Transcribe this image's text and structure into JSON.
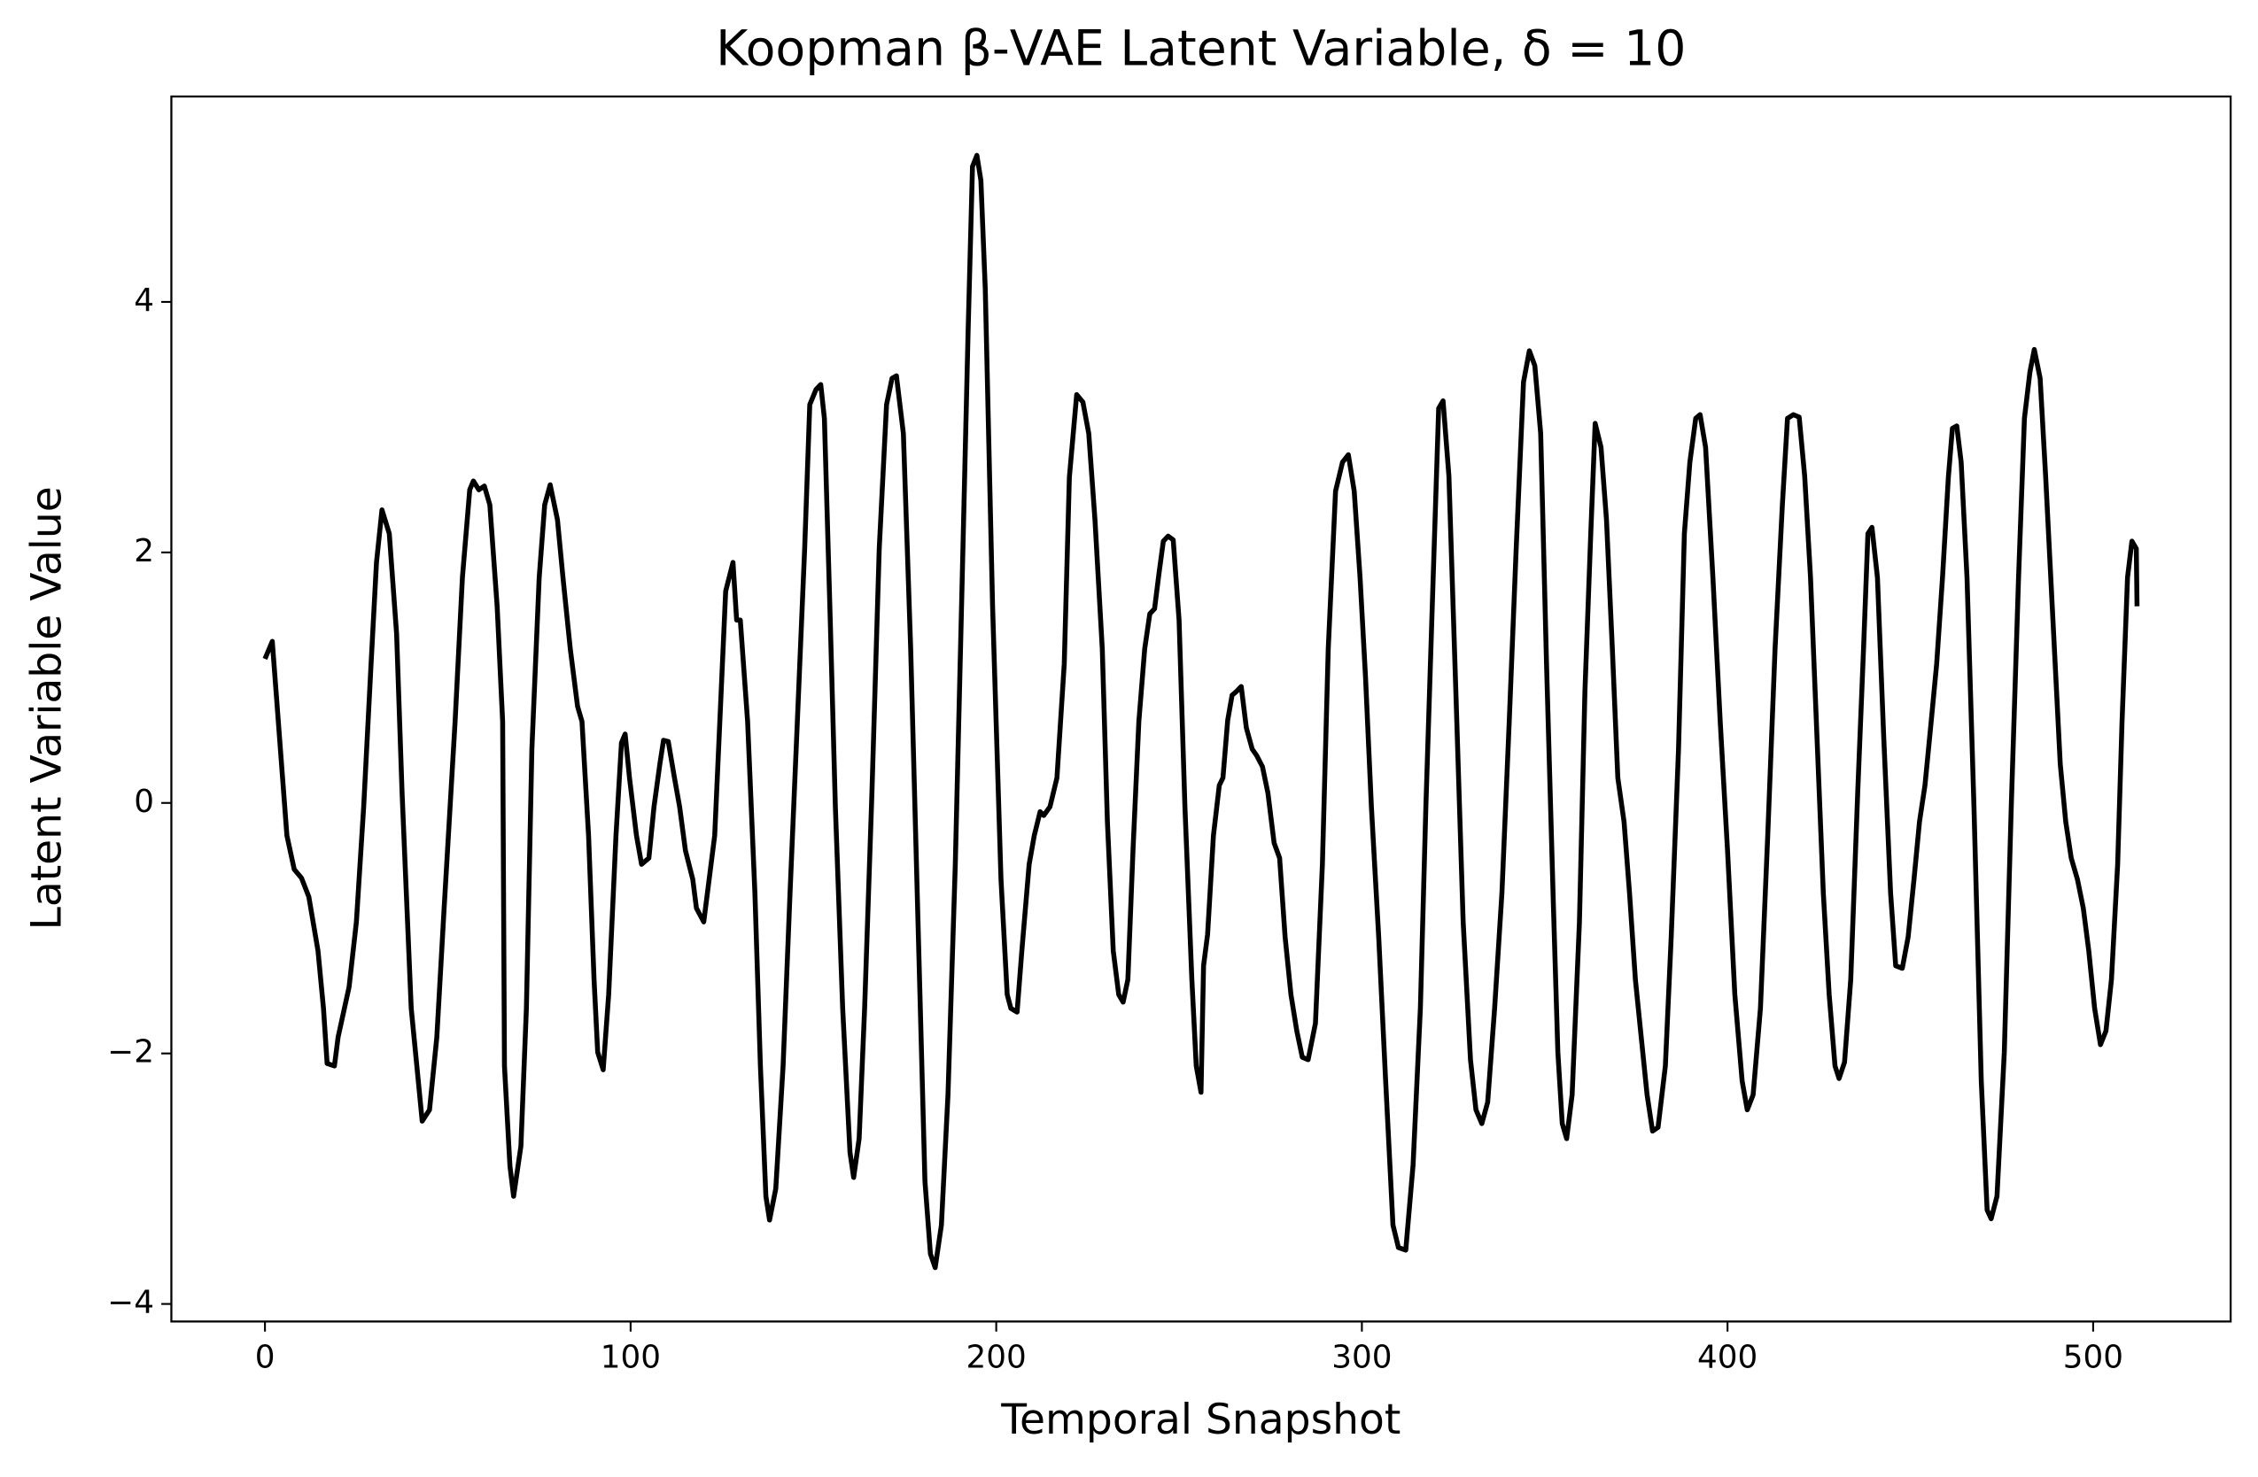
{
  "chart_data": {
    "type": "line",
    "title": "Koopman β-VAE Latent Variable, δ = 10",
    "x_label": "Temporal Snapshot",
    "y_label": "Latent Variable Value",
    "color": "#000000",
    "xlim": [
      -25.6,
      537.6
    ],
    "ylim": [
      -4.14,
      5.64
    ],
    "xticks": [
      0,
      100,
      200,
      300,
      400,
      500
    ],
    "yticks": [
      {
        "value": -4,
        "label": "−4"
      },
      {
        "value": -2,
        "label": "−2"
      },
      0,
      2,
      4
    ],
    "x": [
      0,
      2,
      6,
      8,
      10,
      12,
      14.5,
      16,
      17,
      19,
      20,
      23,
      25,
      27,
      29,
      30.5,
      32,
      34,
      36,
      37.5,
      40,
      43,
      45,
      47,
      49,
      52,
      54,
      56,
      57,
      58.5,
      60,
      61.5,
      63.5,
      65,
      65.5,
      67,
      68,
      70,
      71.5,
      73,
      75,
      76.5,
      78,
      80,
      81.5,
      83.5,
      85.5,
      86.7,
      88.5,
      90,
      91,
      92.5,
      94,
      96,
      97.5,
      98.5,
      99.7,
      101.6,
      103,
      105,
      106.4,
      108,
      109,
      110.3,
      112,
      113.4,
      115,
      117,
      118,
      120,
      121,
      123,
      124.4,
      126,
      128,
      129,
      130,
      132,
      134,
      135.5,
      137,
      138,
      139.7,
      141.7,
      143.6,
      145.6,
      147.6,
      149,
      150.7,
      152,
      153,
      154.6,
      156,
      158,
      160,
      161,
      162.5,
      164,
      166,
      168,
      170,
      171.5,
      172.7,
      174.6,
      176.6,
      178.6,
      180.5,
      182,
      183.3,
      185,
      186.8,
      188.8,
      190.7,
      192.3,
      193.5,
      194.7,
      195.8,
      197,
      199,
      201.3,
      203,
      204,
      205.7,
      207,
      209,
      210.4,
      212,
      213,
      214.7,
      216.6,
      218.6,
      220,
      222,
      223.7,
      225.3,
      227,
      229,
      230.4,
      232,
      233.5,
      234.7,
      236,
      237.4,
      239,
      240.6,
      242,
      243.3,
      244.5,
      245.7,
      247,
      248.4,
      250,
      251.6,
      253.5,
      254.7,
      256,
      256.7,
      257.8,
      259.4,
      261,
      262,
      263.3,
      264.5,
      265.7,
      267,
      268.4,
      270,
      271.2,
      272.8,
      274.3,
      276,
      277.5,
      279,
      280.6,
      282.2,
      283.7,
      285.3,
      287.3,
      289.2,
      290.8,
      292.8,
      294.7,
      296.3,
      297.9,
      299.5,
      301,
      302.6,
      304.6,
      306.5,
      308.5,
      310,
      312,
      314,
      316,
      317.5,
      319.5,
      321,
      322.2,
      323.8,
      325.7,
      327.7,
      329.7,
      331.2,
      332.8,
      334.4,
      336.3,
      338.3,
      340.3,
      342.2,
      344.2,
      345.8,
      347.3,
      348.9,
      350.5,
      352.4,
      353.6,
      354.8,
      356,
      357.5,
      359.5,
      361,
      362.6,
      363.8,
      365.4,
      366.9,
      368.5,
      370,
      371.7,
      373.2,
      374.8,
      376.4,
      378,
      379.5,
      381,
      383,
      384.6,
      386.6,
      388.2,
      389.7,
      391.3,
      392.5,
      394,
      396,
      398,
      400,
      402,
      404,
      405.4,
      407,
      409,
      411,
      413,
      415,
      416.4,
      418,
      419.6,
      421.1,
      422.7,
      424.6,
      426.2,
      427.8,
      429.4,
      430.5,
      432,
      433.7,
      435.6,
      437.2,
      438.4,
      439.5,
      441,
      442.7,
      444.6,
      446,
      447.8,
      449.4,
      451,
      452.5,
      454,
      455.7,
      457.2,
      458.8,
      460.4,
      461.5,
      462.7,
      463.9,
      465.5,
      467.4,
      469.4,
      471,
      472.1,
      473.7,
      475.7,
      477.6,
      479.6,
      481.2,
      482.7,
      483.9,
      485.5,
      487,
      489,
      491,
      492.5,
      494,
      495.7,
      497.3,
      498.8,
      500.4,
      502,
      503.5,
      505,
      506.7,
      507.9,
      509.4,
      510.6,
      511.8,
      512
    ],
    "values": [
      1.15,
      1.29,
      -0.26,
      -0.53,
      -0.6,
      -0.75,
      -1.18,
      -1.64,
      -2.08,
      -2.1,
      -1.87,
      -1.47,
      -0.95,
      -0.03,
      1.1,
      1.92,
      2.34,
      2.15,
      1.35,
      0.08,
      -1.64,
      -2.54,
      -2.45,
      -1.87,
      -0.84,
      0.65,
      1.8,
      2.5,
      2.57,
      2.5,
      2.53,
      2.38,
      1.57,
      0.65,
      -2.1,
      -2.9,
      -3.14,
      -2.74,
      -1.64,
      0.43,
      1.8,
      2.38,
      2.54,
      2.26,
      1.8,
      1.23,
      0.77,
      0.65,
      -0.26,
      -1.41,
      -1.99,
      -2.13,
      -1.53,
      -0.26,
      0.48,
      0.55,
      0.2,
      -0.26,
      -0.49,
      -0.44,
      -0.03,
      0.31,
      0.5,
      0.49,
      0.2,
      -0.03,
      -0.38,
      -0.61,
      -0.84,
      -0.95,
      -0.72,
      -0.26,
      0.65,
      1.69,
      1.92,
      1.46,
      1.46,
      0.65,
      -0.72,
      -2.1,
      -3.14,
      -3.33,
      -3.08,
      -2.1,
      -0.72,
      0.65,
      2.03,
      3.18,
      3.3,
      3.34,
      3.07,
      1.46,
      -0.03,
      -1.64,
      -2.79,
      -2.99,
      -2.68,
      -1.64,
      0.08,
      2.03,
      3.18,
      3.39,
      3.41,
      2.95,
      1.23,
      -0.95,
      -3.02,
      -3.6,
      -3.71,
      -3.37,
      -2.33,
      -0.49,
      1.8,
      3.76,
      5.08,
      5.17,
      4.97,
      4.1,
      1.57,
      -0.61,
      -1.53,
      -1.64,
      -1.67,
      -1.18,
      -0.49,
      -0.26,
      -0.07,
      -0.1,
      -0.03,
      0.2,
      1.11,
      2.6,
      3.26,
      3.2,
      2.95,
      2.26,
      1.23,
      -0.15,
      -1.18,
      -1.53,
      -1.59,
      -1.41,
      -0.38,
      0.65,
      1.23,
      1.51,
      1.55,
      1.83,
      2.09,
      2.13,
      2.1,
      1.46,
      -0.03,
      -1.41,
      -2.1,
      -2.31,
      -1.3,
      -1.05,
      -0.26,
      0.14,
      0.2,
      0.66,
      0.86,
      0.89,
      0.93,
      0.6,
      0.43,
      0.38,
      0.29,
      0.08,
      -0.32,
      -0.44,
      -1.07,
      -1.53,
      -1.82,
      -2.03,
      -2.05,
      -1.76,
      -0.49,
      1.23,
      2.49,
      2.72,
      2.78,
      2.49,
      1.8,
      1.0,
      -0.03,
      -1.07,
      -2.22,
      -3.37,
      -3.55,
      -3.57,
      -2.89,
      -1.64,
      -0.03,
      1.8,
      3.15,
      3.21,
      2.61,
      0.89,
      -0.95,
      -2.05,
      -2.45,
      -2.56,
      -2.39,
      -1.64,
      -0.72,
      0.65,
      2.03,
      3.36,
      3.61,
      3.49,
      2.95,
      1.11,
      -0.84,
      -1.99,
      -2.56,
      -2.68,
      -2.33,
      -0.95,
      0.89,
      2.15,
      3.03,
      2.84,
      2.26,
      1.23,
      0.2,
      -0.15,
      -0.72,
      -1.41,
      -1.87,
      -2.33,
      -2.62,
      -2.59,
      -2.1,
      -1.07,
      0.43,
      2.15,
      2.72,
      3.07,
      3.1,
      2.84,
      1.8,
      0.65,
      -0.38,
      -1.53,
      -2.22,
      -2.45,
      -2.33,
      -1.64,
      -0.26,
      1.23,
      2.38,
      3.07,
      3.1,
      3.08,
      2.61,
      1.8,
      0.43,
      -0.72,
      -1.53,
      -2.1,
      -2.2,
      -2.07,
      -1.41,
      0.08,
      1.23,
      2.15,
      2.2,
      1.8,
      0.54,
      -0.72,
      -1.3,
      -1.32,
      -1.07,
      -0.61,
      -0.15,
      0.14,
      0.65,
      1.11,
      1.8,
      2.6,
      2.99,
      3.01,
      2.72,
      1.8,
      -0.03,
      -2.22,
      -3.25,
      -3.32,
      -3.14,
      -1.99,
      -0.03,
      1.8,
      3.07,
      3.44,
      3.62,
      3.39,
      2.61,
      1.46,
      0.31,
      -0.15,
      -0.44,
      -0.61,
      -0.84,
      -1.18,
      -1.64,
      -1.93,
      -1.82,
      -1.41,
      -0.49,
      0.65,
      1.8,
      2.09,
      2.03,
      1.57
    ]
  }
}
